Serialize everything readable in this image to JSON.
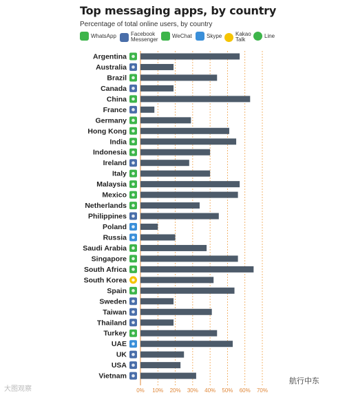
{
  "title": "Top messaging apps, by country",
  "subtitle": "Percentage of total online users, by country",
  "legend": {
    "whatsapp": "WhatsApp",
    "messenger": "Facebook Messenger",
    "wechat": "WeChat",
    "skype": "Skype",
    "kakao": "Kakao Talk",
    "line": "Line"
  },
  "colors": {
    "bar": "#4d5b6a",
    "whatsapp": "#3db54a",
    "messenger": "#4a6ea9",
    "wechat": "#3db54a",
    "skype": "#3a8fd9",
    "kakao": "#f5c400",
    "line": "#3db54a",
    "grid": "#f0a24a",
    "axis": "#e0883a"
  },
  "watermark_left": "大图观察",
  "watermark_right": "航行中东",
  "chart_data": {
    "type": "bar",
    "orientation": "horizontal",
    "title": "Top messaging apps, by country",
    "subtitle": "Percentage of total online users, by country",
    "xlabel": "",
    "ylabel": "",
    "xlim": [
      0,
      70
    ],
    "xticks": [
      "0%",
      "10%",
      "20%",
      "30%",
      "40%",
      "50%",
      "60%",
      "70%"
    ],
    "grid": "vertical dashed",
    "legend": "top",
    "categories": [
      "Argentina",
      "Australia",
      "Brazil",
      "Canada",
      "China",
      "France",
      "Germany",
      "Hong Kong",
      "India",
      "Indonesia",
      "Ireland",
      "Italy",
      "Malaysia",
      "Mexico",
      "Netherlands",
      "Philippines",
      "Poland",
      "Russia",
      "Saudi Arabia",
      "Singapore",
      "South Africa",
      "South Korea",
      "Spain",
      "Sweden",
      "Taiwan",
      "Thailand",
      "Turkey",
      "UAE",
      "UK",
      "USA",
      "Vietnam"
    ],
    "values": [
      57,
      19,
      44,
      19,
      63,
      8,
      29,
      51,
      55,
      40,
      28,
      40,
      57,
      56,
      34,
      45,
      10,
      20,
      38,
      56,
      65,
      42,
      54,
      19,
      41,
      19,
      44,
      53,
      25,
      23,
      32
    ],
    "top_app": [
      "WhatsApp",
      "Facebook Messenger",
      "WhatsApp",
      "Facebook Messenger",
      "WeChat",
      "Facebook Messenger",
      "WhatsApp",
      "WhatsApp",
      "WhatsApp",
      "WhatsApp",
      "Facebook Messenger",
      "WhatsApp",
      "WhatsApp",
      "WhatsApp",
      "WhatsApp",
      "Facebook Messenger",
      "Skype",
      "Skype",
      "WhatsApp",
      "WhatsApp",
      "WhatsApp",
      "Kakao Talk",
      "WhatsApp",
      "Facebook Messenger",
      "Facebook Messenger",
      "Facebook Messenger",
      "WhatsApp",
      "Skype",
      "Facebook Messenger",
      "Facebook Messenger",
      "Facebook Messenger"
    ]
  }
}
